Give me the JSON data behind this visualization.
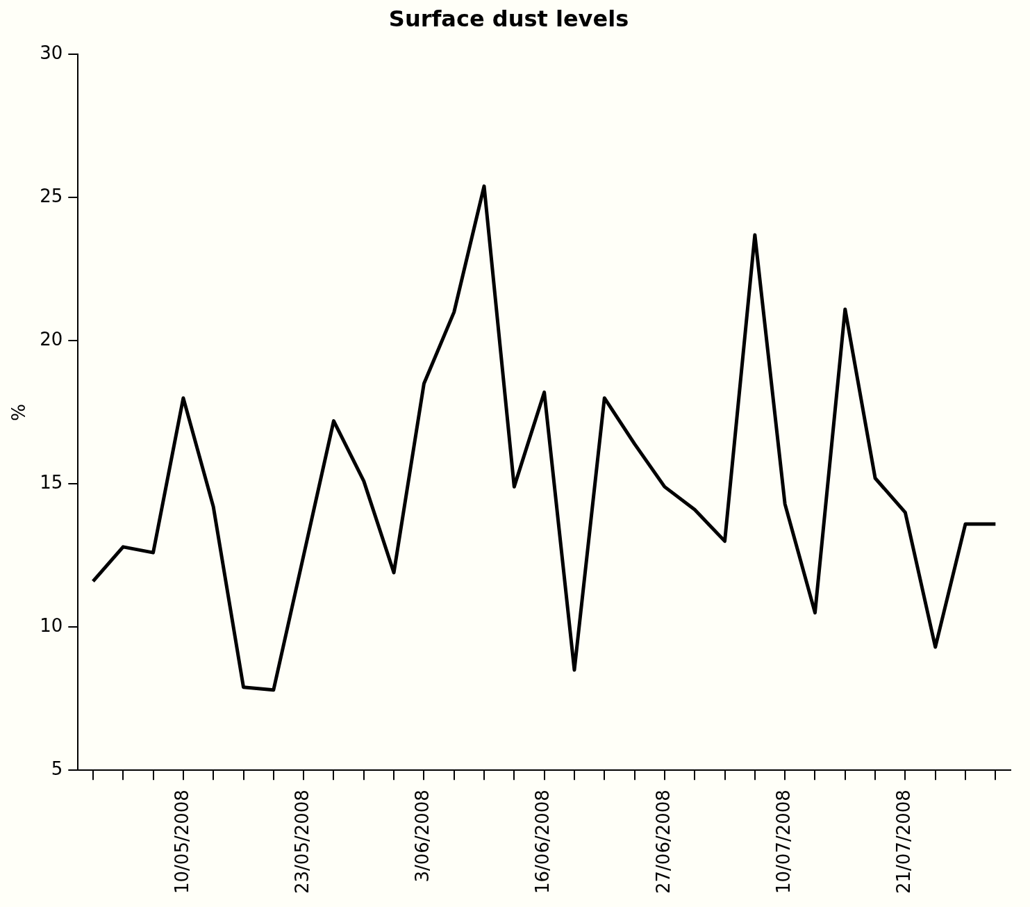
{
  "chart_data": {
    "type": "line",
    "title": "Surface dust levels",
    "ylabel": "%",
    "categories": [
      null,
      null,
      null,
      "10/05/2008",
      null,
      null,
      null,
      "23/05/2008",
      null,
      null,
      null,
      "3/06/2008",
      null,
      null,
      null,
      "16/06/2008",
      null,
      null,
      null,
      "27/06/2008",
      null,
      null,
      null,
      "10/07/2008",
      null,
      null,
      null,
      "21/07/2008",
      null,
      null,
      null
    ],
    "series": [
      {
        "color": "#000000",
        "values": [
          11.6,
          12.8,
          12.6,
          18.0,
          14.2,
          7.9,
          7.8,
          12.5,
          17.2,
          15.1,
          11.9,
          18.5,
          21.0,
          25.4,
          14.9,
          18.2,
          8.5,
          18.0,
          16.4,
          14.9,
          14.1,
          13.0,
          23.7,
          14.3,
          10.5,
          21.1,
          15.2,
          14.0,
          9.3,
          13.6,
          13.6
        ]
      }
    ],
    "ylim": [
      5,
      30
    ],
    "yticks": [
      5,
      10,
      15,
      20,
      25,
      30
    ],
    "grid": false,
    "legend": false,
    "marker": "none",
    "line_style": "solid"
  }
}
